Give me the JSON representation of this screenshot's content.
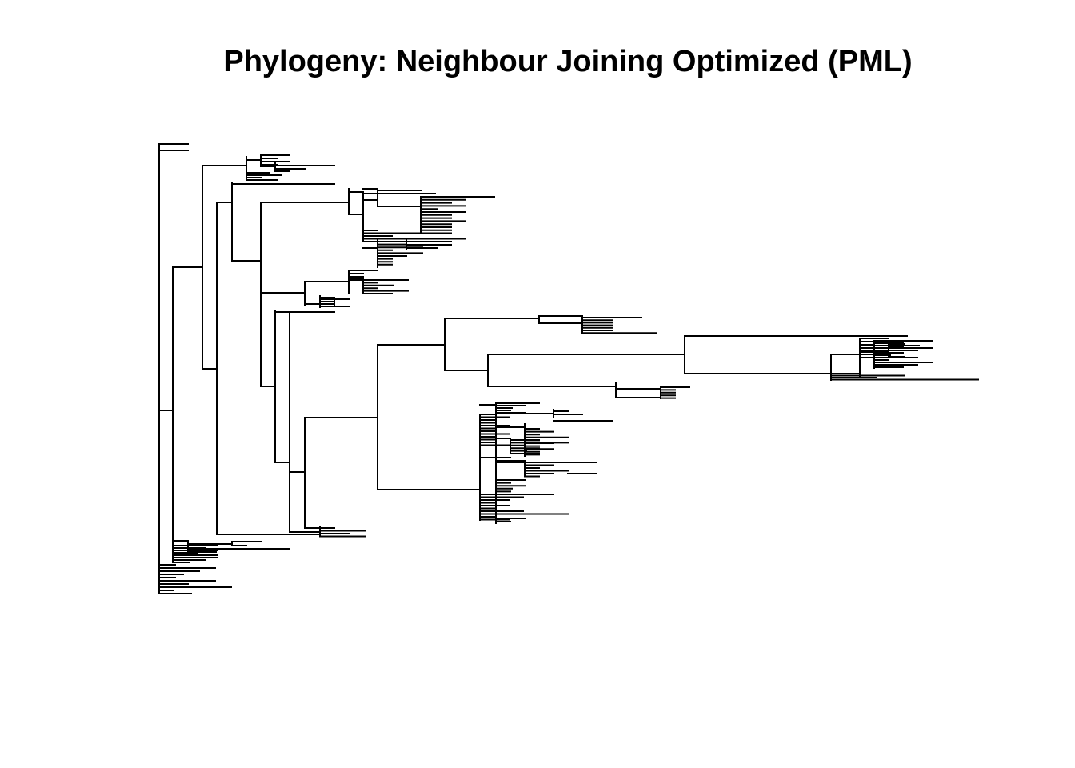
{
  "title": "Phylogeny: Neighbour Joining Optimized (PML)",
  "colors": {
    "background": "#ffffff",
    "branch": "#000000",
    "title": "#000000"
  }
}
